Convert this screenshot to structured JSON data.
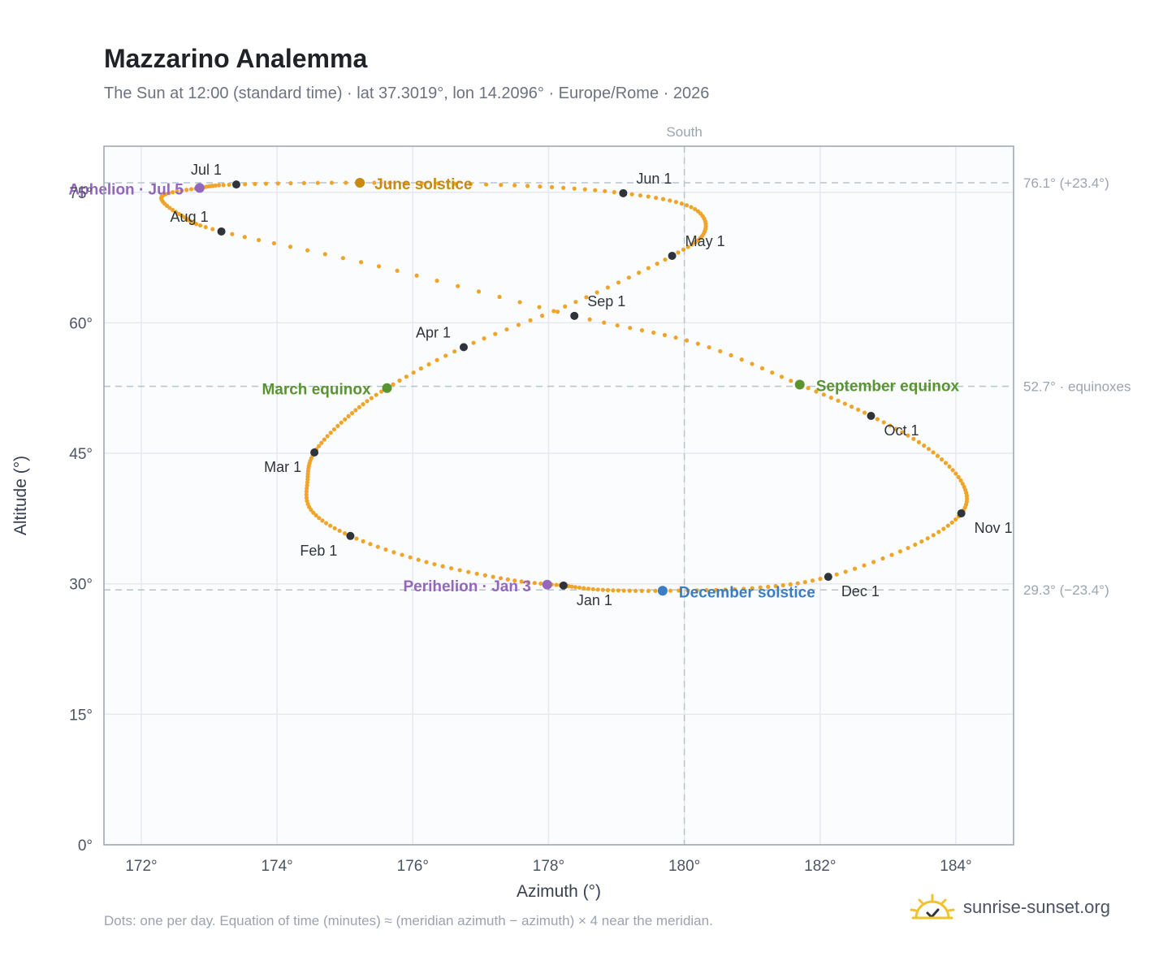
{
  "title": "Mazzarino Analemma",
  "subtitle": "The Sun at 12:00 (standard time) · lat 37.3019°, lon 14.2096° · Europe/Rome · 2026",
  "footnote": "Dots: one per day. Equation of time (minutes) ≈ (meridian azimuth − azimuth) × 4 near the meridian.",
  "brand": {
    "text": "sunrise-sunset.org",
    "icon": "sun-logo-icon"
  },
  "colors": {
    "curve": "#f0a52a",
    "month_dot": "#2f343b",
    "june": "#c98a0b",
    "equinox": "#5a9432",
    "december": "#3b7dc4",
    "apsis": "#9467bd",
    "grid": "#e5e9ee",
    "plot_bg": "#fafcfe",
    "ref_line": "#b8c4cc"
  },
  "chart_data": {
    "type": "scatter",
    "xlabel": "Azimuth (°)",
    "ylabel": "Altitude (°)",
    "xlim": [
      171.45,
      184.85
    ],
    "ylim": [
      0,
      80.3
    ],
    "x_ticks": [
      172,
      174,
      176,
      178,
      180,
      182,
      184
    ],
    "x_tick_labels": [
      "172°",
      "174°",
      "176°",
      "178°",
      "180°",
      "182°",
      "184°"
    ],
    "y_ticks": [
      0,
      15,
      30,
      45,
      60,
      75
    ],
    "y_tick_labels": [
      "0°",
      "15°",
      "30°",
      "45°",
      "60°",
      "75°"
    ],
    "grid": true,
    "meridian": {
      "x": 180,
      "label": "South"
    },
    "reference_lines": [
      {
        "y": 76.1,
        "label": "76.1° (+23.4°)"
      },
      {
        "y": 52.7,
        "label": "52.7° · equinoxes"
      },
      {
        "y": 29.3,
        "label": "29.3° (−23.4°)"
      }
    ],
    "month_markers": [
      {
        "label": "Jan 1",
        "x": 178.22,
        "y": 29.8
      },
      {
        "label": "Feb 1",
        "x": 175.08,
        "y": 35.5
      },
      {
        "label": "Mar 1",
        "x": 174.55,
        "y": 45.1
      },
      {
        "label": "Apr 1",
        "x": 176.75,
        "y": 57.2
      },
      {
        "label": "May 1",
        "x": 179.82,
        "y": 67.7
      },
      {
        "label": "Jun 1",
        "x": 179.1,
        "y": 74.9
      },
      {
        "label": "Jul 1",
        "x": 173.4,
        "y": 75.9
      },
      {
        "label": "Aug 1",
        "x": 173.18,
        "y": 70.5
      },
      {
        "label": "Sep 1",
        "x": 178.38,
        "y": 60.8
      },
      {
        "label": "Oct 1",
        "x": 182.75,
        "y": 49.3
      },
      {
        "label": "Nov 1",
        "x": 184.08,
        "y": 38.1
      },
      {
        "label": "Dec 1",
        "x": 182.12,
        "y": 30.8
      }
    ],
    "events": [
      {
        "label": "June solstice",
        "x": 175.22,
        "y": 76.1,
        "color": "#c98a0b"
      },
      {
        "label": "March equinox",
        "x": 175.62,
        "y": 52.5,
        "color": "#5a9432"
      },
      {
        "label": "September equinox",
        "x": 181.7,
        "y": 52.9,
        "color": "#5a9432"
      },
      {
        "label": "December solstice",
        "x": 179.68,
        "y": 29.2,
        "color": "#3b7dc4"
      },
      {
        "label": "Perihelion · Jan 3",
        "x": 177.98,
        "y": 29.9,
        "color": "#9467bd"
      },
      {
        "label": "Aphelion · Jul 5",
        "x": 172.86,
        "y": 75.5,
        "color": "#9467bd"
      }
    ],
    "curve_path": [
      [
        178.22,
        29.8
      ],
      [
        177.4,
        30.5
      ],
      [
        176.2,
        32.5
      ],
      [
        175.08,
        35.5
      ],
      [
        174.5,
        38.5
      ],
      [
        174.45,
        42.0
      ],
      [
        174.55,
        45.1
      ],
      [
        175.0,
        48.9
      ],
      [
        175.62,
        52.5
      ],
      [
        176.75,
        57.2
      ],
      [
        178.4,
        62.4
      ],
      [
        179.82,
        67.7
      ],
      [
        180.3,
        70.5
      ],
      [
        180.1,
        73.3
      ],
      [
        179.1,
        74.9
      ],
      [
        177.5,
        75.8
      ],
      [
        175.22,
        76.1
      ],
      [
        173.4,
        75.9
      ],
      [
        172.86,
        75.5
      ],
      [
        172.3,
        74.5
      ],
      [
        172.6,
        72.3
      ],
      [
        173.18,
        70.5
      ],
      [
        175.5,
        66.5
      ],
      [
        178.38,
        60.8
      ],
      [
        180.2,
        57.6
      ],
      [
        181.7,
        52.9
      ],
      [
        182.75,
        49.3
      ],
      [
        183.6,
        45.5
      ],
      [
        184.1,
        41.5
      ],
      [
        184.08,
        38.1
      ],
      [
        183.4,
        34.5
      ],
      [
        182.12,
        30.8
      ],
      [
        181.0,
        29.5
      ],
      [
        179.68,
        29.2
      ],
      [
        178.8,
        29.3
      ],
      [
        178.22,
        29.8
      ]
    ]
  }
}
